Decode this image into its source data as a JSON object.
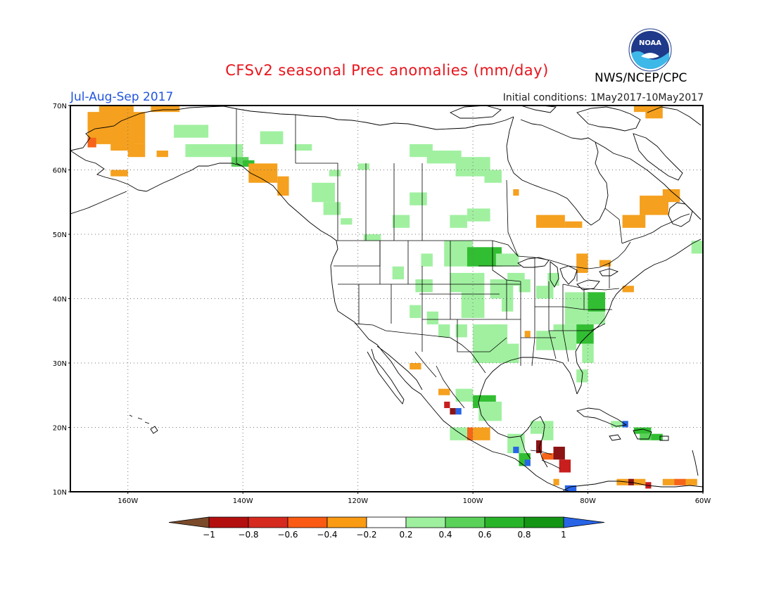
{
  "header": {
    "title": "CFSv2 seasonal Prec anomalies (mm/day)",
    "season": "Jul-Aug-Sep 2017",
    "initial_conditions": "Initial conditions: 1May2017-10May2017",
    "agency": "NWS/NCEP/CPC",
    "logo_text": "NOAA"
  },
  "map": {
    "projection": "cylindrical equidistant",
    "lon_range": [
      -170,
      -60
    ],
    "lat_range": [
      10,
      70
    ],
    "gridlines": "dotted",
    "lat_labels": [
      "70N",
      "60N",
      "50N",
      "40N",
      "30N",
      "20N",
      "10N"
    ],
    "lat_values": [
      70,
      60,
      50,
      40,
      30,
      20,
      10
    ],
    "lon_labels": [
      "160W",
      "140W",
      "120W",
      "100W",
      "80W",
      "60W"
    ],
    "lon_values": [
      -160,
      -140,
      -120,
      -100,
      -80,
      -60
    ]
  },
  "colorbar": {
    "labels": [
      "-1",
      "-0.8",
      "-0.6",
      "-0.4",
      "-0.2",
      "0.2",
      "0.4",
      "0.6",
      "0.8",
      "1"
    ],
    "colors": [
      "#7b4a2a",
      "#b40f0f",
      "#d62a1e",
      "#fa5a14",
      "#fa9b14",
      "#ffffff",
      "#9eef9e",
      "#5ad25a",
      "#28b428",
      "#149614",
      "#2864e6"
    ]
  },
  "anomaly_colors": {
    "orange": "#f5a01e",
    "red_orange": "#f56419",
    "red": "#c81e1e",
    "dark_red": "#8c1414",
    "light_green": "#a0f0a0",
    "green": "#5ad25a",
    "mid_green": "#32be32",
    "dark_green": "#1e9b1e",
    "blue": "#2864e6"
  }
}
